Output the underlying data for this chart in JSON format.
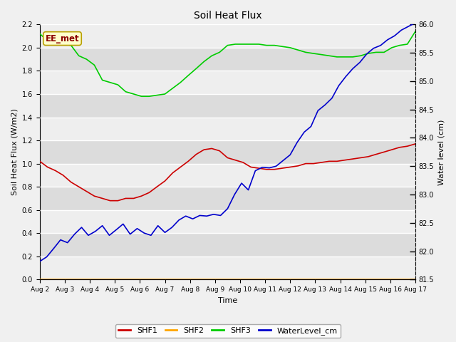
{
  "title": "Soil Heat Flux",
  "xlabel": "Time",
  "ylabel_left": "Soil Heat Flux (W/m2)",
  "ylabel_right": "Water level (cm)",
  "xlim": [
    0,
    15
  ],
  "ylim_left": [
    0.0,
    2.2
  ],
  "ylim_right": [
    81.5,
    86.0
  ],
  "x_tick_labels": [
    "Aug 2",
    "Aug 3",
    "Aug 4",
    "Aug 5",
    "Aug 6",
    "Aug 7",
    "Aug 8",
    "Aug 9",
    "Aug 10",
    "Aug 11",
    "Aug 12",
    "Aug 13",
    "Aug 14",
    "Aug 15",
    "Aug 16",
    "Aug 17"
  ],
  "annotation_text": "EE_met",
  "annotation_color": "#8B0000",
  "annotation_bg": "#FFFFCC",
  "annotation_border": "#B8A000",
  "shf1_color": "#CC0000",
  "shf2_color": "#FFA500",
  "shf3_color": "#00CC00",
  "water_color": "#0000CC",
  "fig_bg_color": "#F0F0F0",
  "plot_bg_color": "#E8E8E8",
  "band_light": "#EEEEEE",
  "band_dark": "#DCDCDC",
  "grid_color": "#FFFFFF",
  "shf1": [
    1.02,
    0.97,
    0.94,
    0.9,
    0.84,
    0.8,
    0.76,
    0.72,
    0.7,
    0.68,
    0.68,
    0.7,
    0.7,
    0.72,
    0.75,
    0.8,
    0.85,
    0.92,
    0.97,
    1.02,
    1.08,
    1.12,
    1.13,
    1.11,
    1.05,
    1.03,
    1.01,
    0.97,
    0.96,
    0.95,
    0.95,
    0.96,
    0.97,
    0.98,
    1.0,
    1.0,
    1.01,
    1.02,
    1.02,
    1.03,
    1.04,
    1.05,
    1.06,
    1.08,
    1.1,
    1.12,
    1.14,
    1.15,
    1.17
  ],
  "shf1_x": [
    0,
    0.31,
    0.62,
    0.93,
    1.25,
    1.56,
    1.87,
    2.18,
    2.5,
    2.81,
    3.12,
    3.43,
    3.75,
    4.06,
    4.37,
    4.68,
    5.0,
    5.31,
    5.62,
    5.93,
    6.25,
    6.56,
    6.87,
    7.18,
    7.5,
    7.81,
    8.12,
    8.43,
    8.75,
    9.06,
    9.37,
    9.68,
    10.0,
    10.31,
    10.62,
    10.93,
    11.25,
    11.56,
    11.87,
    12.18,
    12.5,
    12.81,
    13.12,
    13.43,
    13.75,
    14.06,
    14.37,
    14.68,
    15.0
  ],
  "shf2": [
    0.0,
    0.0,
    0.0,
    0.0,
    0.0,
    0.0,
    0.0,
    0.0,
    0.0,
    0.0,
    0.0,
    0.0,
    0.0,
    0.0,
    0.0,
    0.0,
    0.0,
    0.0,
    0.0,
    0.0,
    0.0,
    0.0,
    0.0,
    0.0,
    0.0,
    0.0,
    0.0,
    0.0,
    0.0,
    0.0,
    0.0,
    0.0,
    0.0,
    0.0,
    0.0,
    0.0,
    0.0,
    0.0,
    0.0,
    0.0,
    0.0,
    0.0,
    0.0,
    0.0,
    0.0,
    0.0,
    0.0,
    0.0,
    0.0
  ],
  "shf2_x": [
    0,
    0.31,
    0.62,
    0.93,
    1.25,
    1.56,
    1.87,
    2.18,
    2.5,
    2.81,
    3.12,
    3.43,
    3.75,
    4.06,
    4.37,
    4.68,
    5.0,
    5.31,
    5.62,
    5.93,
    6.25,
    6.56,
    6.87,
    7.18,
    7.5,
    7.81,
    8.12,
    8.43,
    8.75,
    9.06,
    9.37,
    9.68,
    10.0,
    10.31,
    10.62,
    10.93,
    11.25,
    11.56,
    11.87,
    12.18,
    12.5,
    12.81,
    13.12,
    13.43,
    13.75,
    14.06,
    14.37,
    14.68,
    15.0
  ],
  "shf3": [
    2.12,
    2.06,
    2.04,
    2.03,
    2.02,
    1.93,
    1.9,
    1.85,
    1.72,
    1.7,
    1.68,
    1.62,
    1.6,
    1.58,
    1.58,
    1.59,
    1.6,
    1.65,
    1.7,
    1.76,
    1.82,
    1.88,
    1.93,
    1.96,
    2.02,
    2.03,
    2.03,
    2.03,
    2.03,
    2.02,
    2.02,
    2.01,
    2.0,
    1.98,
    1.96,
    1.95,
    1.94,
    1.93,
    1.92,
    1.92,
    1.92,
    1.93,
    1.95,
    1.96,
    1.96,
    2.0,
    2.02,
    2.03,
    2.14
  ],
  "shf3_x": [
    0,
    0.31,
    0.62,
    0.93,
    1.25,
    1.56,
    1.87,
    2.18,
    2.5,
    2.81,
    3.12,
    3.43,
    3.75,
    4.06,
    4.37,
    4.68,
    5.0,
    5.31,
    5.62,
    5.93,
    6.25,
    6.56,
    6.87,
    7.18,
    7.5,
    7.81,
    8.12,
    8.43,
    8.75,
    9.06,
    9.37,
    9.68,
    10.0,
    10.31,
    10.62,
    10.93,
    11.25,
    11.56,
    11.87,
    12.18,
    12.5,
    12.81,
    13.12,
    13.43,
    13.75,
    14.06,
    14.37,
    14.68,
    15.0
  ],
  "water": [
    81.82,
    81.9,
    82.05,
    82.2,
    82.15,
    82.3,
    82.42,
    82.28,
    82.35,
    82.45,
    82.28,
    82.38,
    82.48,
    82.3,
    82.4,
    82.32,
    82.28,
    82.45,
    82.33,
    82.42,
    82.55,
    82.62,
    82.57,
    82.63,
    82.62,
    82.65,
    82.63,
    82.75,
    83.0,
    83.2,
    83.08,
    83.42,
    83.48,
    83.47,
    83.5,
    83.6,
    83.7,
    83.92,
    84.1,
    84.2,
    84.48,
    84.58,
    84.7,
    84.92,
    85.08,
    85.22,
    85.33,
    85.48,
    85.58,
    85.63,
    85.73,
    85.8,
    85.9,
    86.03
  ],
  "water_x": [
    0,
    0.28,
    0.56,
    0.83,
    1.11,
    1.39,
    1.67,
    1.94,
    2.22,
    2.5,
    2.78,
    3.06,
    3.33,
    3.61,
    3.89,
    4.17,
    4.44,
    4.72,
    5.0,
    5.28,
    5.56,
    5.83,
    6.11,
    6.39,
    6.67,
    6.94,
    7.22,
    7.5,
    7.78,
    8.06,
    8.33,
    8.61,
    8.89,
    9.17,
    9.44,
    9.72,
    10.0,
    10.28,
    10.56,
    10.83,
    11.11,
    11.39,
    11.67,
    11.94,
    12.22,
    12.5,
    12.78,
    13.06,
    13.33,
    13.61,
    13.89,
    14.17,
    14.44,
    15.0
  ]
}
